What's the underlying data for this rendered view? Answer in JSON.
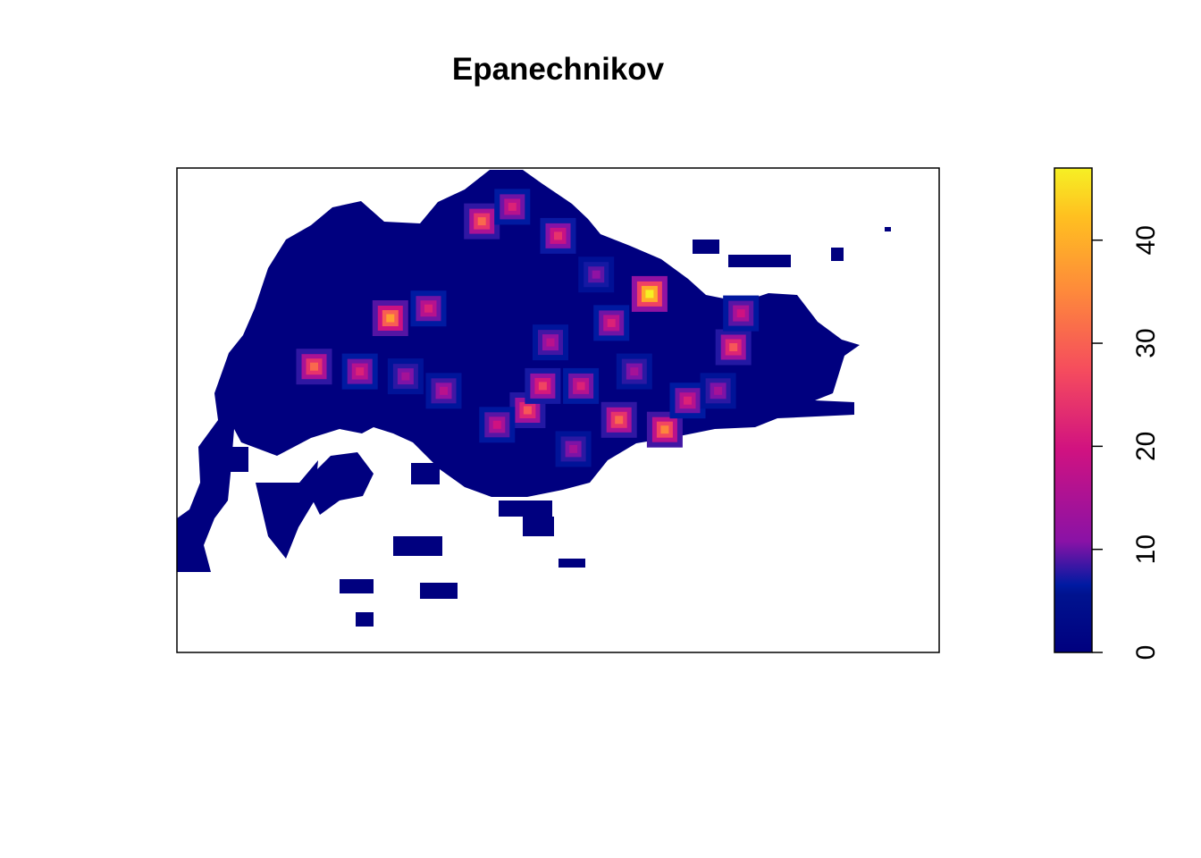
{
  "chart_data": {
    "type": "heatmap",
    "title": "Epanechnikov",
    "xlabel": "",
    "ylabel": "",
    "legend": {
      "placement": "right",
      "range": [
        0,
        47
      ],
      "ticks": [
        0,
        10,
        20,
        30,
        40
      ],
      "tick_labels": [
        "0",
        "10",
        "20",
        "30",
        "40"
      ],
      "palette": [
        "#00007f",
        "#001aa2",
        "#8a12a6",
        "#d11280",
        "#f54b5e",
        "#fe8b3a",
        "#ffc020",
        "#f6f024"
      ]
    },
    "axes": {
      "x_ticks_shown": false,
      "y_ticks_shown": false,
      "grid": false
    },
    "hotspots": [
      {
        "x": 0.62,
        "y": 0.74,
        "value": 47
      },
      {
        "x": 0.28,
        "y": 0.69,
        "value": 36
      },
      {
        "x": 0.64,
        "y": 0.46,
        "value": 33
      },
      {
        "x": 0.58,
        "y": 0.48,
        "value": 30
      },
      {
        "x": 0.4,
        "y": 0.89,
        "value": 30
      },
      {
        "x": 0.18,
        "y": 0.59,
        "value": 30
      },
      {
        "x": 0.73,
        "y": 0.63,
        "value": 28
      },
      {
        "x": 0.46,
        "y": 0.5,
        "value": 28
      },
      {
        "x": 0.48,
        "y": 0.55,
        "value": 26
      },
      {
        "x": 0.5,
        "y": 0.86,
        "value": 24
      },
      {
        "x": 0.24,
        "y": 0.58,
        "value": 22
      },
      {
        "x": 0.33,
        "y": 0.71,
        "value": 22
      },
      {
        "x": 0.44,
        "y": 0.92,
        "value": 22
      },
      {
        "x": 0.53,
        "y": 0.55,
        "value": 22
      },
      {
        "x": 0.57,
        "y": 0.68,
        "value": 22
      },
      {
        "x": 0.67,
        "y": 0.52,
        "value": 22
      },
      {
        "x": 0.74,
        "y": 0.7,
        "value": 20
      },
      {
        "x": 0.49,
        "y": 0.64,
        "value": 18
      },
      {
        "x": 0.35,
        "y": 0.54,
        "value": 18
      },
      {
        "x": 0.42,
        "y": 0.47,
        "value": 20
      },
      {
        "x": 0.3,
        "y": 0.57,
        "value": 16
      },
      {
        "x": 0.52,
        "y": 0.42,
        "value": 16
      },
      {
        "x": 0.6,
        "y": 0.58,
        "value": 16
      },
      {
        "x": 0.55,
        "y": 0.78,
        "value": 14
      },
      {
        "x": 0.71,
        "y": 0.54,
        "value": 16
      }
    ]
  }
}
